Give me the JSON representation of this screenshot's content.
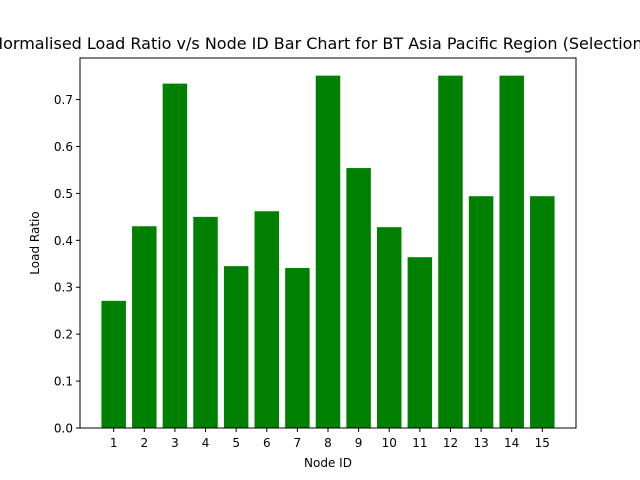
{
  "chart_data": {
    "type": "bar",
    "title": "Normalised Load Ratio v/s Node ID Bar Chart for BT Asia Pacific Region (Selection)",
    "xlabel": "Node ID",
    "ylabel": "Load Ratio",
    "categories": [
      "1",
      "2",
      "3",
      "4",
      "5",
      "6",
      "7",
      "8",
      "9",
      "10",
      "11",
      "12",
      "13",
      "14",
      "15"
    ],
    "values": [
      0.271,
      0.43,
      0.734,
      0.45,
      0.345,
      0.462,
      0.341,
      0.751,
      0.554,
      0.428,
      0.364,
      0.751,
      0.494,
      0.751,
      0.494
    ],
    "ylim": [
      0,
      0.7886
    ],
    "yticks": [
      "0.0",
      "0.1",
      "0.2",
      "0.3",
      "0.4",
      "0.5",
      "0.6",
      "0.7"
    ],
    "bar_color": "#008000",
    "grid": false,
    "legend": "none"
  }
}
